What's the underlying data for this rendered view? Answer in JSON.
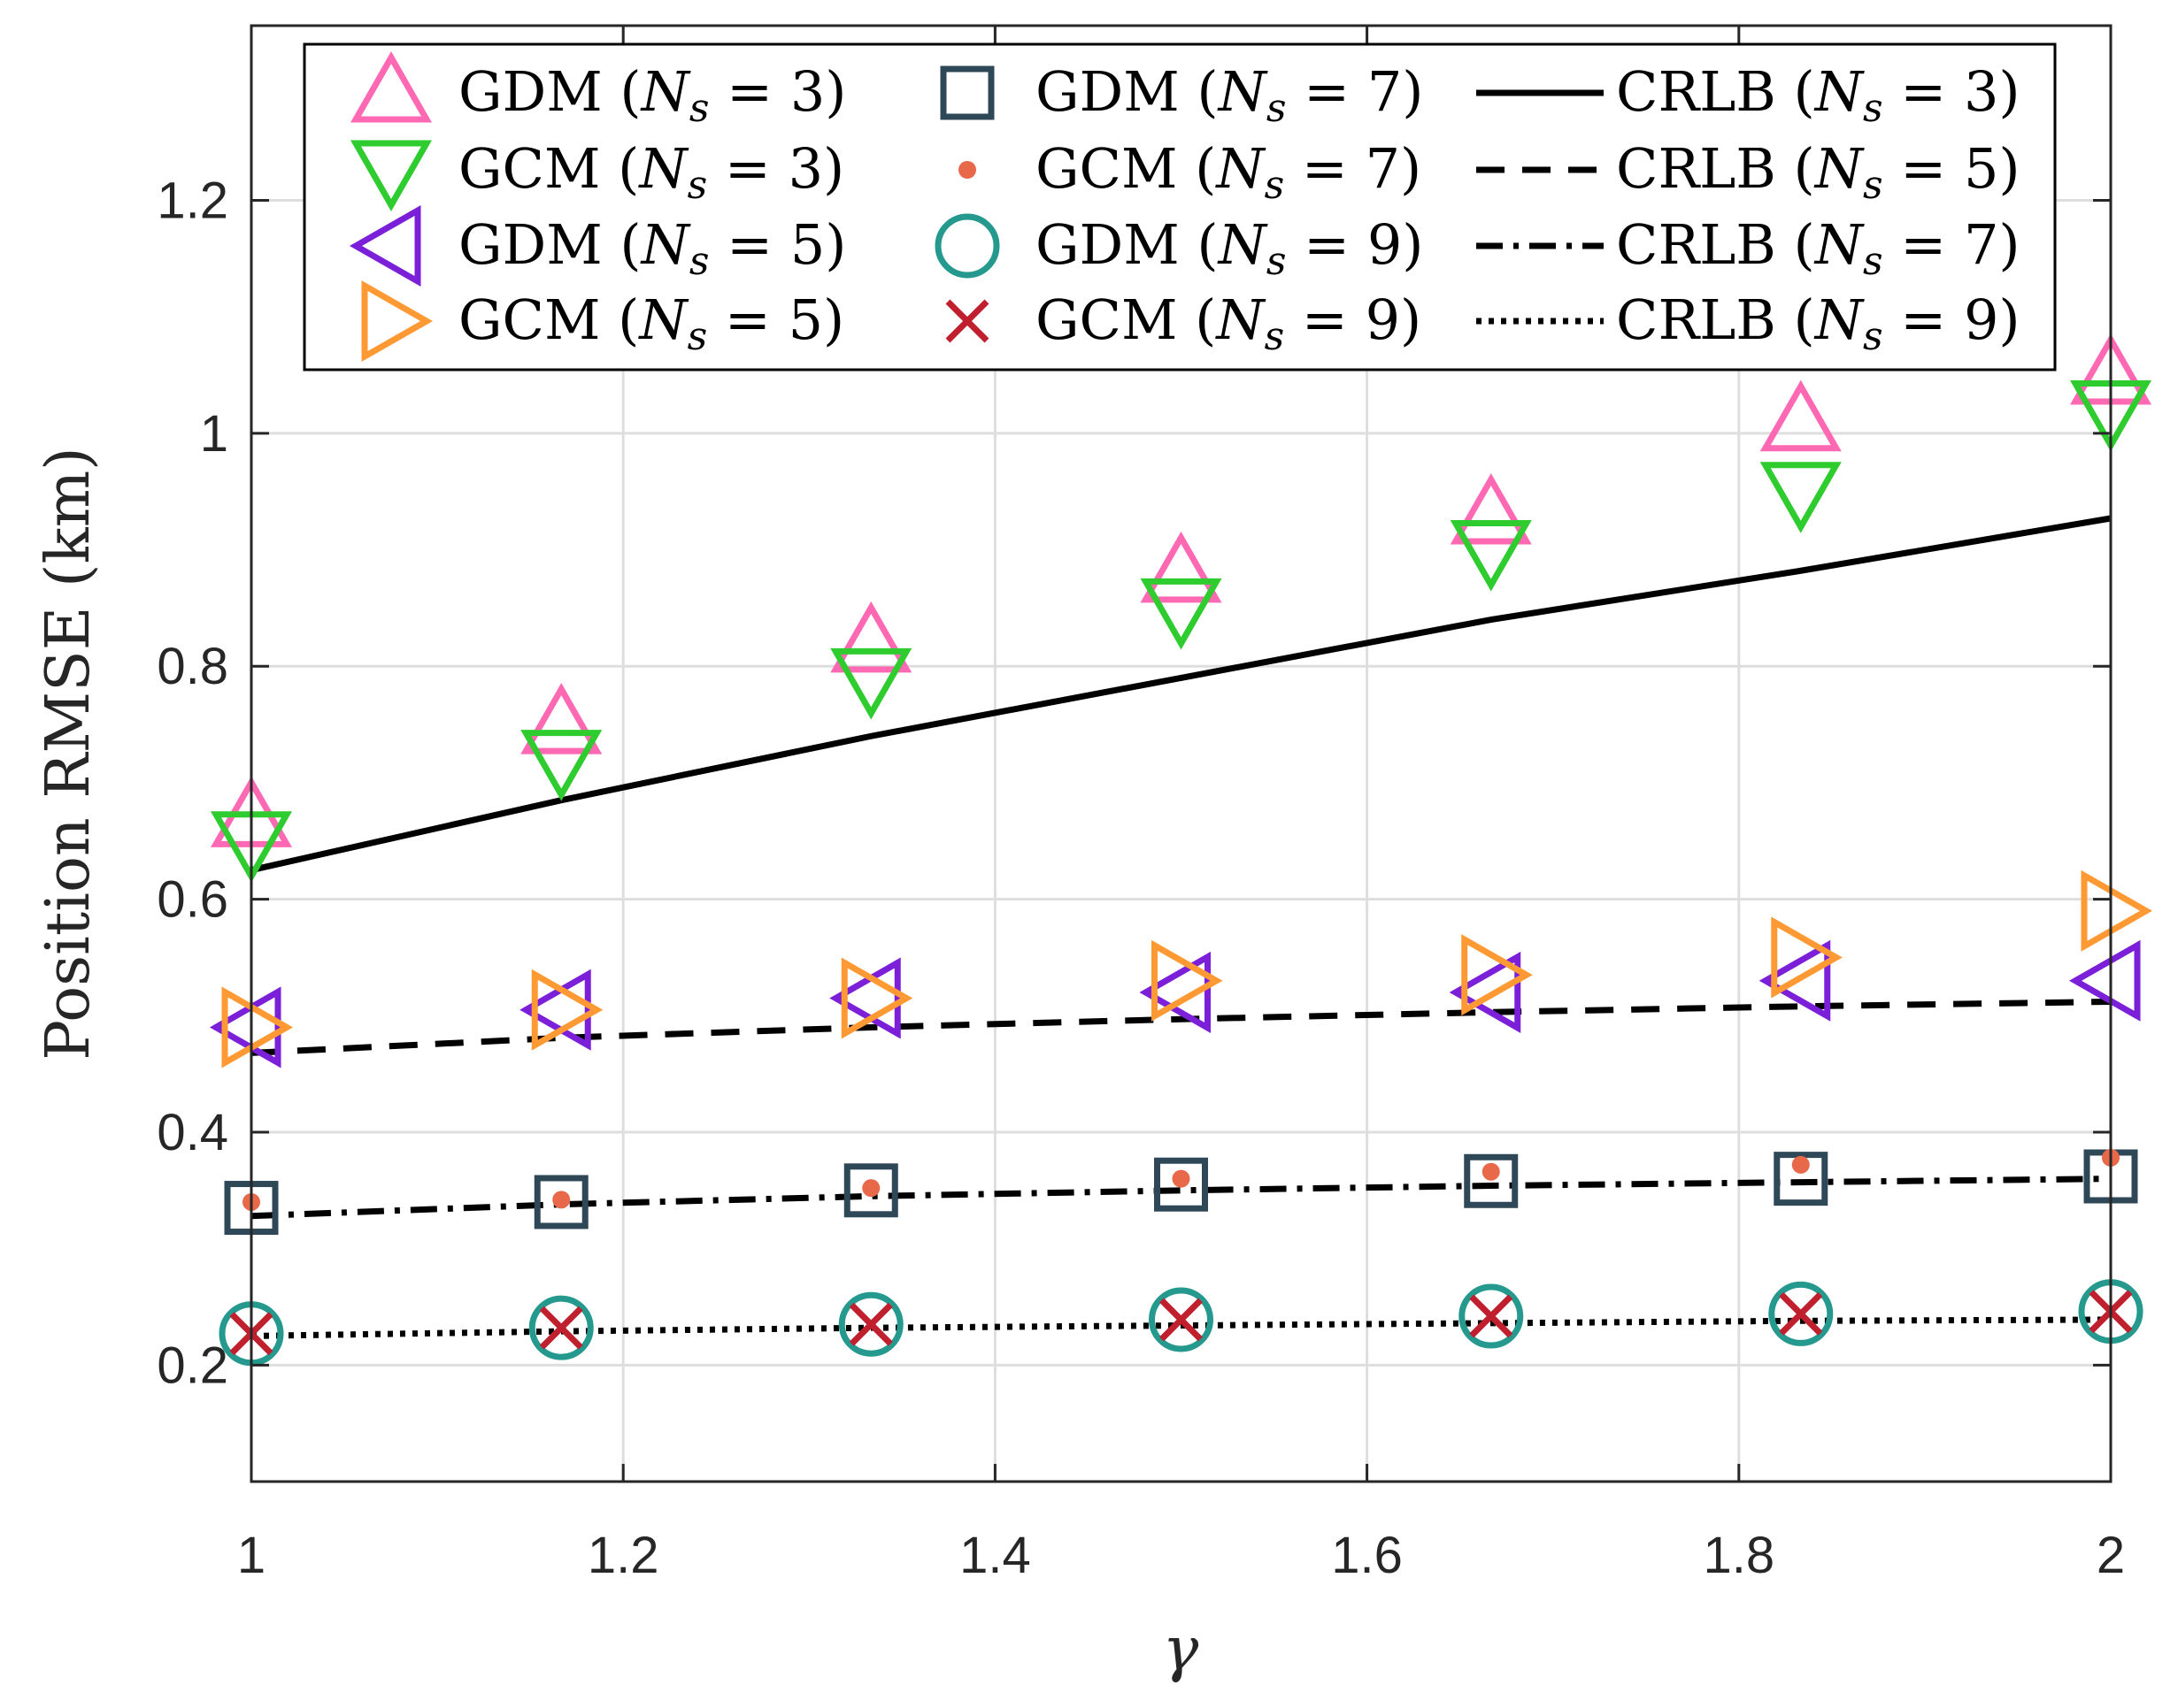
{
  "chart_data": {
    "type": "scatter",
    "title": "",
    "xlabel": "γ",
    "ylabel": "Position RMSE (km)",
    "xlim": [
      1,
      2
    ],
    "ylim": [
      0.1,
      1.35
    ],
    "xticks": [
      1,
      1.2,
      1.4,
      1.6,
      1.8,
      2
    ],
    "yticks": [
      0.2,
      0.4,
      0.6,
      0.8,
      1,
      1.2
    ],
    "xtick_labels": [
      "1",
      "1.2",
      "1.4",
      "1.6",
      "1.8",
      "2"
    ],
    "ytick_labels": [
      "0.2",
      "0.4",
      "0.6",
      "0.8",
      "1",
      "1.2"
    ],
    "grid": true,
    "legend_position": "top",
    "x": [
      1,
      1.1667,
      1.3333,
      1.5,
      1.6667,
      1.8333,
      2
    ],
    "series": [
      {
        "name": "GDM (N_s = 3)",
        "label": "GDM",
        "ns": "3",
        "marker": "triangle-up",
        "color": "#ff69b4",
        "values": [
          0.67,
          0.75,
          0.82,
          0.88,
          0.93,
          1.01,
          1.05
        ]
      },
      {
        "name": "GCM (N_s = 3)",
        "label": "GCM",
        "ns": "3",
        "marker": "triangle-down",
        "color": "#2ecc2e",
        "values": [
          0.65,
          0.72,
          0.79,
          0.85,
          0.9,
          0.95,
          1.02
        ]
      },
      {
        "name": "GDM (N_s = 5)",
        "label": "GDM",
        "ns": "5",
        "marker": "triangle-left",
        "color": "#7b1fd8",
        "values": [
          0.49,
          0.505,
          0.515,
          0.52,
          0.52,
          0.53,
          0.53
        ]
      },
      {
        "name": "GCM (N_s = 5)",
        "label": "GCM",
        "ns": "5",
        "marker": "triangle-right",
        "color": "#ff9933",
        "values": [
          0.49,
          0.505,
          0.515,
          0.53,
          0.535,
          0.55,
          0.59
        ]
      },
      {
        "name": "GDM (N_s = 7)",
        "label": "GDM",
        "ns": "7",
        "marker": "square",
        "color": "#2f4858",
        "values": [
          0.335,
          0.34,
          0.35,
          0.355,
          0.358,
          0.36,
          0.362
        ]
      },
      {
        "name": "GCM (N_s = 7)",
        "label": "GCM",
        "ns": "7",
        "marker": "dot",
        "color": "#e8684a",
        "values": [
          0.34,
          0.342,
          0.352,
          0.36,
          0.366,
          0.372,
          0.378
        ]
      },
      {
        "name": "GDM (N_s = 9)",
        "label": "GDM",
        "ns": "9",
        "marker": "circle",
        "color": "#26998f",
        "values": [
          0.227,
          0.232,
          0.235,
          0.239,
          0.242,
          0.244,
          0.246
        ]
      },
      {
        "name": "GCM (N_s = 9)",
        "label": "GCM",
        "ns": "9",
        "marker": "x",
        "color": "#c0202e",
        "values": [
          0.227,
          0.232,
          0.235,
          0.239,
          0.242,
          0.244,
          0.246
        ]
      },
      {
        "name": "CRLB (N_s = 3)",
        "label": "CRLB",
        "ns": "3",
        "line": "solid",
        "color": "#000000",
        "values": [
          0.625,
          0.685,
          0.74,
          0.79,
          0.84,
          0.882,
          0.927
        ]
      },
      {
        "name": "CRLB (N_s = 5)",
        "label": "CRLB",
        "ns": "5",
        "line": "dashed",
        "color": "#000000",
        "values": [
          0.468,
          0.481,
          0.49,
          0.497,
          0.503,
          0.508,
          0.512
        ]
      },
      {
        "name": "CRLB (N_s = 7)",
        "label": "CRLB",
        "ns": "7",
        "line": "dashdot",
        "color": "#000000",
        "values": [
          0.328,
          0.338,
          0.345,
          0.35,
          0.354,
          0.357,
          0.36
        ]
      },
      {
        "name": "CRLB (N_s = 9)",
        "label": "CRLB",
        "ns": "9",
        "line": "dotted",
        "color": "#000000",
        "values": [
          0.225,
          0.229,
          0.232,
          0.234,
          0.236,
          0.238,
          0.239
        ]
      }
    ]
  }
}
